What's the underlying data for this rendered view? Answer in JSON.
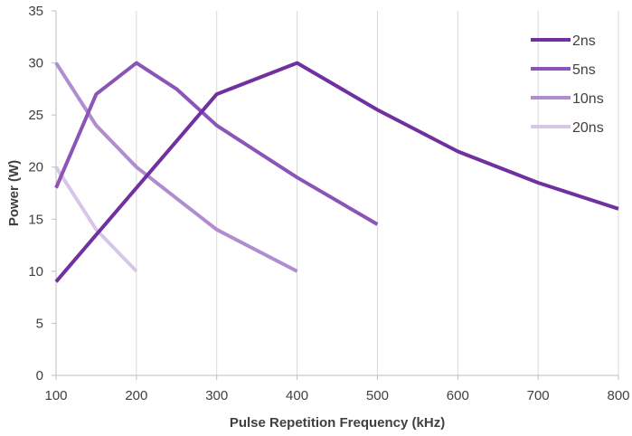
{
  "chart_data": {
    "type": "line",
    "title": "",
    "xlabel": "Pulse Repetition Frequency (kHz)",
    "ylabel": "Power (W)",
    "xlim": [
      100,
      800
    ],
    "ylim": [
      0,
      35
    ],
    "xticks": [
      100,
      200,
      300,
      400,
      500,
      600,
      700,
      800
    ],
    "yticks": [
      0,
      5,
      10,
      15,
      20,
      25,
      30,
      35
    ],
    "grid": "vertical",
    "legend_position": "top-right",
    "series": [
      {
        "name": "2ns",
        "color": "#7030a0",
        "x": [
          100,
          150,
          200,
          250,
          300,
          400,
          500,
          600,
          700,
          800
        ],
        "y": [
          9,
          13.5,
          18,
          22.5,
          27,
          30,
          25.5,
          21.5,
          18.5,
          16
        ]
      },
      {
        "name": "5ns",
        "color": "#8b55b8",
        "x": [
          100,
          150,
          200,
          250,
          300,
          400,
          500
        ],
        "y": [
          18,
          27,
          30,
          27.5,
          24,
          19,
          14.5
        ]
      },
      {
        "name": "10ns",
        "color": "#b08dce",
        "x": [
          100,
          150,
          200,
          250,
          300,
          400
        ],
        "y": [
          30,
          24,
          20,
          17,
          14,
          10
        ]
      },
      {
        "name": "20ns",
        "color": "#d8c6e8",
        "x": [
          100,
          150,
          200
        ],
        "y": [
          20,
          14,
          10
        ]
      }
    ]
  }
}
